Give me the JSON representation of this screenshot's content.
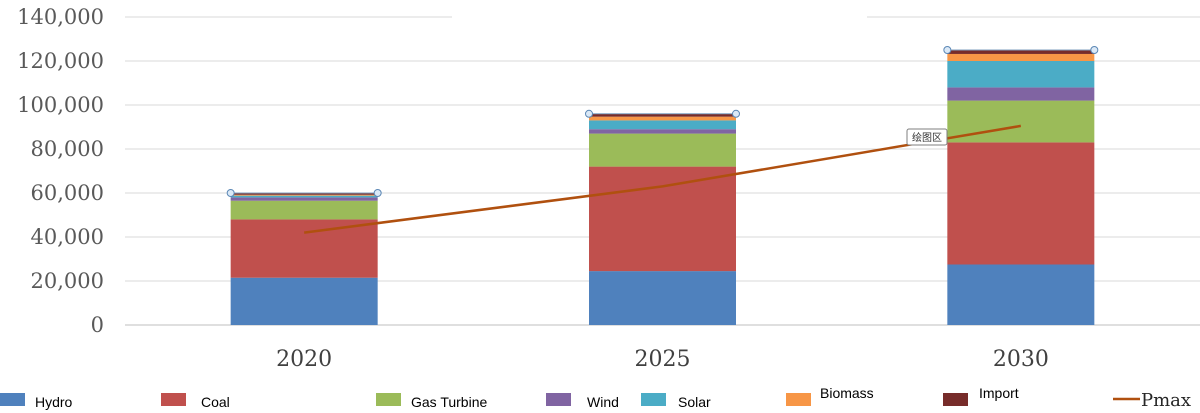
{
  "chart_data": {
    "type": "bar",
    "stacked": true,
    "categories": [
      "2020",
      "2025",
      "2030"
    ],
    "series": [
      {
        "name": "Hydro",
        "color": "#4F81BD",
        "values": [
          21500,
          24500,
          27500
        ]
      },
      {
        "name": "Coal",
        "color": "#C0504D",
        "values": [
          26500,
          47500,
          55500
        ]
      },
      {
        "name": "Gas Turbine",
        "color": "#9BBB59",
        "values": [
          8500,
          15000,
          19000
        ]
      },
      {
        "name": "Wind",
        "color": "#8064A2",
        "values": [
          1500,
          2000,
          6000
        ]
      },
      {
        "name": "Solar",
        "color": "#4BACC6",
        "values": [
          800,
          4000,
          12000
        ]
      },
      {
        "name": "Biomass",
        "color": "#F79646",
        "values": [
          400,
          1700,
          3200
        ]
      },
      {
        "name": "Import",
        "color": "#772C2A",
        "values": [
          800,
          1300,
          1800
        ]
      }
    ],
    "line_series": {
      "name": "Pmax",
      "color": "#B0500F",
      "values": [
        42000,
        63000,
        90500
      ]
    },
    "yticks": [
      "0",
      "20,000",
      "40,000",
      "60,000",
      "80,000",
      "100,000",
      "120,000",
      "140,000"
    ],
    "ylim": [
      0,
      140000
    ],
    "grid": true,
    "title": "",
    "xlabel": "",
    "ylabel": "",
    "legend_position": "bottom",
    "annotation": "绘图区"
  }
}
